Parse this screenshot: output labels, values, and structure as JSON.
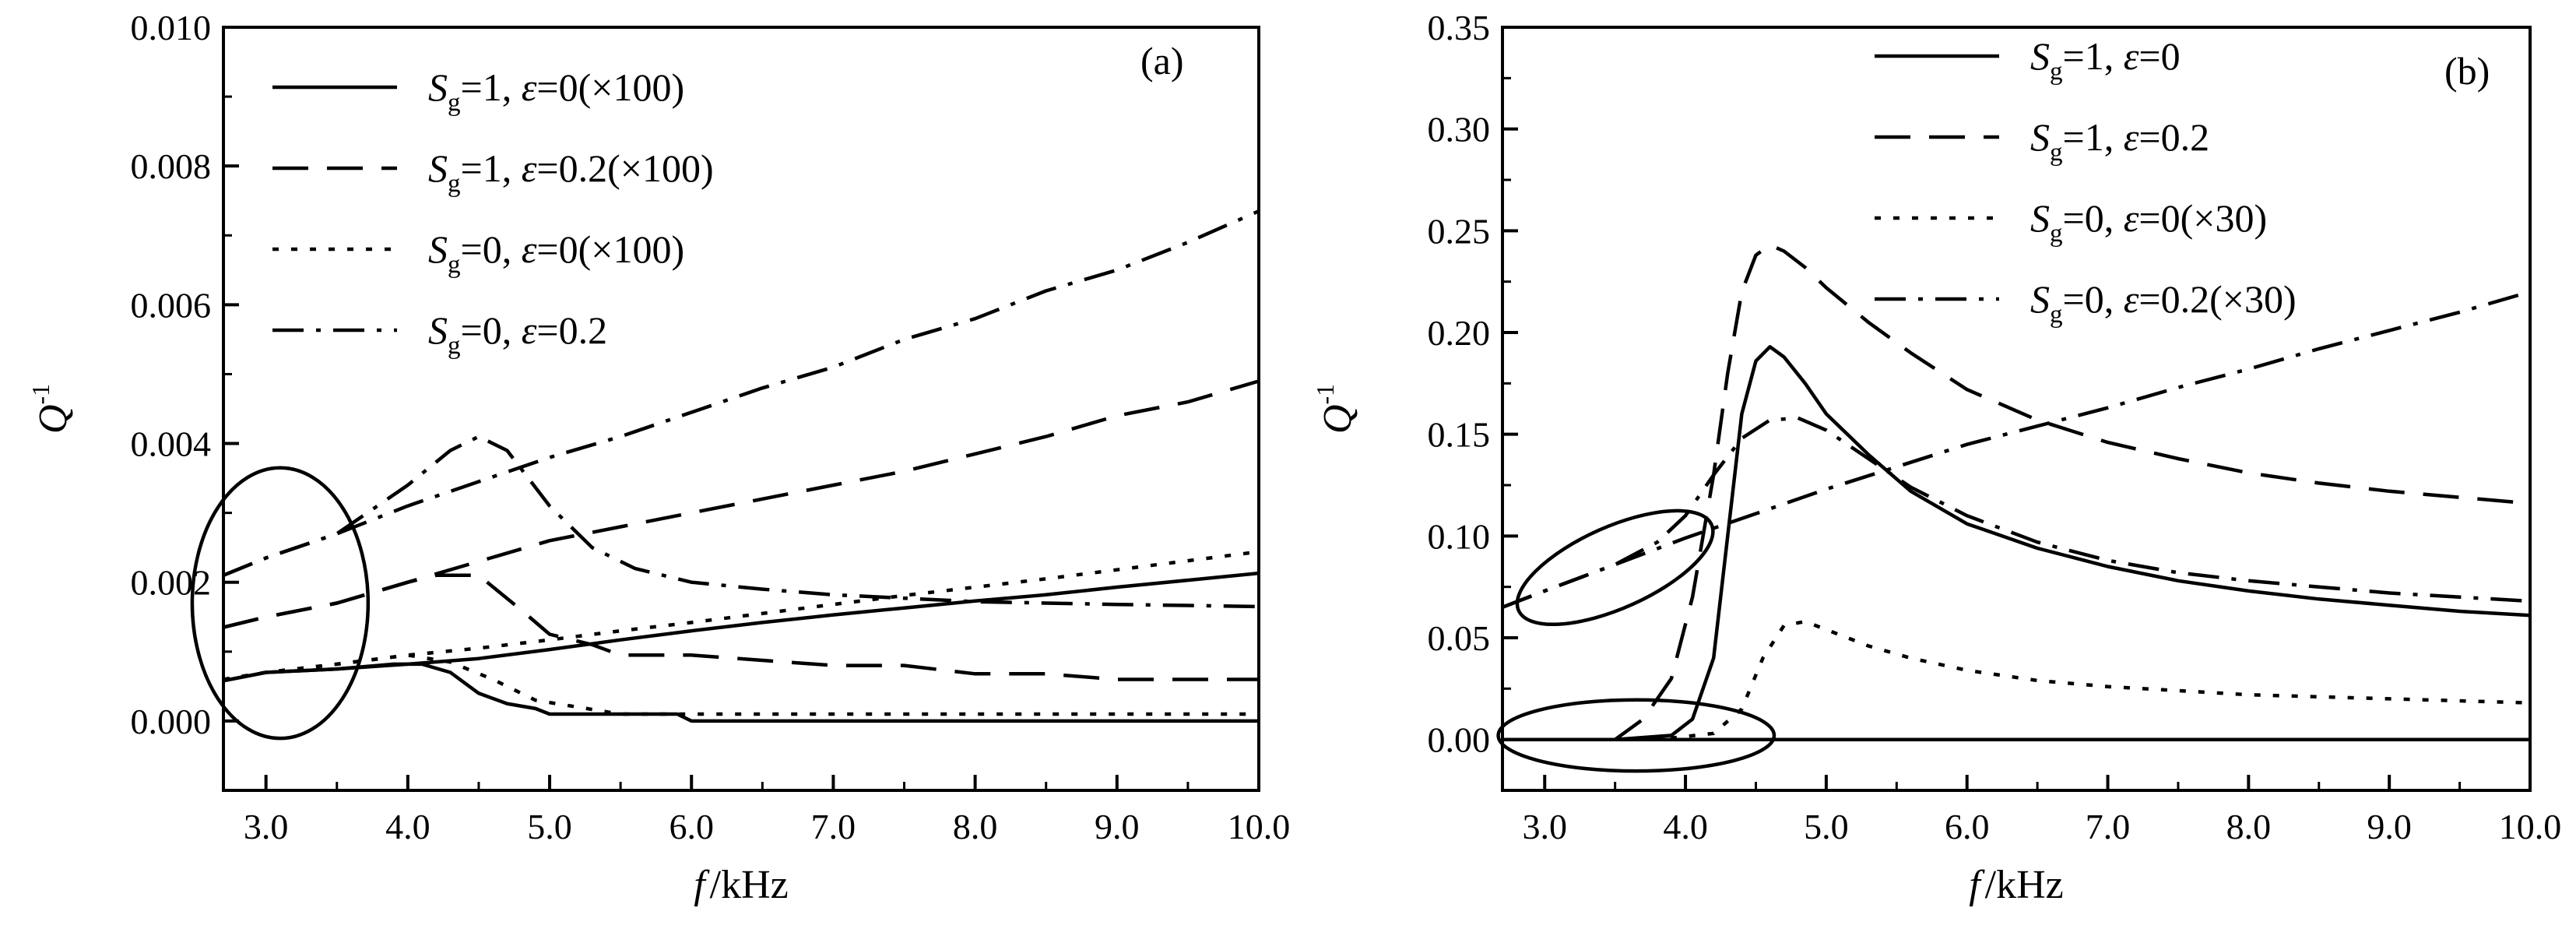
{
  "chart_data": [
    {
      "type": "line",
      "panel_label": "(a)",
      "xlabel_italic": "f",
      "xlabel_unit": "/kHz",
      "ylabel_main": "Q",
      "ylabel_sup": "-1",
      "xlim": [
        2.7,
        10.0
      ],
      "ylim": [
        -0.001,
        0.01
      ],
      "xticks": [
        3.0,
        4.0,
        5.0,
        6.0,
        7.0,
        8.0,
        9.0,
        10.0
      ],
      "xtick_labels": [
        "3.0",
        "4.0",
        "5.0",
        "6.0",
        "7.0",
        "8.0",
        "9.0",
        "10.0"
      ],
      "yticks": [
        0.0,
        0.002,
        0.004,
        0.006,
        0.008,
        0.01
      ],
      "ytick_labels": [
        "0.000",
        "0.002",
        "0.004",
        "0.006",
        "0.008",
        "0.010"
      ],
      "legend_position": "top-left",
      "series": [
        {
          "S": "S",
          "sub": "g",
          "svalue": "=1, ",
          "eps": "ε",
          "evalue": "=0(×100)",
          "style": "solid",
          "x": [
            2.7,
            3.0,
            3.5,
            4.0,
            4.5,
            5.0,
            5.5,
            6.0,
            6.5,
            7.0,
            7.5,
            8.0,
            8.5,
            9.0,
            9.5,
            10.0
          ],
          "y": [
            0.00058,
            0.0007,
            0.00075,
            0.00082,
            0.0009,
            0.00103,
            0.00117,
            0.0013,
            0.00142,
            0.00153,
            0.00163,
            0.00173,
            0.00182,
            0.00193,
            0.00203,
            0.00213
          ]
        },
        {
          "S": "S",
          "sub": "g",
          "svalue": "=1, ",
          "eps": "ε",
          "evalue": "=0.2(×100)",
          "style": "dash",
          "x": [
            2.7,
            3.0,
            3.5,
            4.0,
            4.5,
            5.0,
            5.5,
            6.0,
            6.5,
            7.0,
            7.5,
            8.0,
            8.5,
            9.0,
            9.5,
            10.0
          ],
          "y": [
            0.00135,
            0.0015,
            0.0017,
            0.002,
            0.0023,
            0.0026,
            0.0028,
            0.003,
            0.0032,
            0.0034,
            0.0036,
            0.00385,
            0.0041,
            0.0044,
            0.0046,
            0.0049
          ]
        },
        {
          "S": "S",
          "sub": "g",
          "svalue": "=0, ",
          "eps": "ε",
          "evalue": "=0(×100)",
          "style": "dot",
          "x": [
            2.7,
            3.0,
            3.5,
            4.0,
            4.5,
            5.0,
            5.5,
            6.0,
            6.5,
            7.0,
            7.5,
            8.0,
            8.5,
            9.0,
            9.5,
            10.0
          ],
          "y": [
            0.0006,
            0.0007,
            0.00082,
            0.00095,
            0.00105,
            0.00117,
            0.0013,
            0.00142,
            0.00155,
            0.00168,
            0.00181,
            0.00193,
            0.00205,
            0.00218,
            0.00231,
            0.00244
          ]
        },
        {
          "S": "S",
          "sub": "g",
          "svalue": "=0, ",
          "eps": "ε",
          "evalue": "=0.2",
          "style": "dashdot",
          "x": [
            2.7,
            3.0,
            3.5,
            4.0,
            4.5,
            5.0,
            5.5,
            6.0,
            6.5,
            7.0,
            7.5,
            8.0,
            8.5,
            9.0,
            9.5,
            10.0
          ],
          "y": [
            0.0021,
            0.00235,
            0.0027,
            0.0031,
            0.00345,
            0.0038,
            0.0041,
            0.00445,
            0.0048,
            0.0051,
            0.0055,
            0.0058,
            0.0062,
            0.0065,
            0.0069,
            0.00735
          ]
        }
      ],
      "extra_curves": [
        {
          "style": "solid",
          "x": [
            2.7,
            3.0,
            3.5,
            3.9,
            4.1,
            4.3,
            4.5,
            4.7,
            4.9,
            5.0,
            5.5,
            5.9,
            6.0,
            7.0,
            8.0,
            9.0,
            10.0
          ],
          "y": [
            0.00058,
            0.0007,
            0.00075,
            0.00082,
            0.00082,
            0.0007,
            0.0004,
            0.00025,
            0.00018,
            0.0001,
            0.0001,
            0.0001,
            0.0,
            0.0,
            0.0,
            0.0,
            0.0
          ]
        },
        {
          "style": "dash",
          "x": [
            2.7,
            3.0,
            3.5,
            4.0,
            4.2,
            4.5,
            4.8,
            5.0,
            5.3,
            5.5,
            6.0,
            7.0,
            7.5,
            8.0,
            8.5,
            9.0,
            10.0
          ],
          "y": [
            0.00135,
            0.0015,
            0.0017,
            0.002,
            0.0021,
            0.0021,
            0.0016,
            0.00125,
            0.0011,
            0.00095,
            0.00095,
            0.0008,
            0.0008,
            0.00068,
            0.00068,
            0.0006,
            0.0006
          ]
        },
        {
          "style": "dot",
          "x": [
            2.7,
            3.0,
            3.5,
            4.0,
            4.3,
            4.6,
            4.9,
            5.2,
            5.5,
            6.0,
            7.0,
            8.0,
            9.0,
            10.0
          ],
          "y": [
            0.0006,
            0.0007,
            0.00082,
            0.00095,
            0.00085,
            0.0006,
            0.0003,
            0.0002,
            0.0001,
            0.0001,
            0.0001,
            0.0001,
            0.0001,
            0.0001
          ]
        },
        {
          "style": "dashdot",
          "x": [
            2.7,
            3.0,
            3.5,
            4.0,
            4.3,
            4.5,
            4.7,
            5.0,
            5.3,
            5.6,
            6.0,
            6.5,
            7.0,
            7.5,
            8.0,
            9.0,
            10.0
          ],
          "y": [
            0.0021,
            0.00235,
            0.0027,
            0.0034,
            0.0039,
            0.0041,
            0.0039,
            0.0031,
            0.0025,
            0.0022,
            0.002,
            0.0019,
            0.00182,
            0.00177,
            0.00172,
            0.00168,
            0.00165
          ]
        }
      ],
      "ellipses": [
        {
          "cx": 3.1,
          "cy": 0.0017,
          "rx": 0.62,
          "ry": 0.00195,
          "angle_deg": 0
        }
      ]
    },
    {
      "type": "line",
      "panel_label": "(b)",
      "xlabel_italic": "f",
      "xlabel_unit": "/kHz",
      "ylabel_main": "Q",
      "ylabel_sup": "-1",
      "xlim": [
        2.7,
        10.0
      ],
      "ylim": [
        -0.025,
        0.35
      ],
      "xticks": [
        3.0,
        4.0,
        5.0,
        6.0,
        7.0,
        8.0,
        9.0,
        10.0
      ],
      "xtick_labels": [
        "3.0",
        "4.0",
        "5.0",
        "6.0",
        "7.0",
        "8.0",
        "9.0",
        "10.0"
      ],
      "yticks": [
        0.0,
        0.05,
        0.1,
        0.15,
        0.2,
        0.25,
        0.3,
        0.35
      ],
      "ytick_labels": [
        "0.00",
        "0.05",
        "0.10",
        "0.15",
        "0.20",
        "0.25",
        "0.30",
        "0.35"
      ],
      "legend_position": "top-center",
      "series": [
        {
          "S": "S",
          "sub": "g",
          "svalue": "=1, ",
          "eps": "ε",
          "evalue": "=0",
          "style": "solid",
          "x": [
            2.7,
            3.5,
            3.9,
            4.05,
            4.2,
            4.3,
            4.4,
            4.5,
            4.6,
            4.7,
            4.85,
            5.0,
            5.3,
            5.6,
            6.0,
            6.5,
            7.0,
            7.5,
            8.0,
            8.5,
            9.0,
            9.5,
            10.0
          ],
          "y": [
            0.0,
            0.0,
            0.002,
            0.01,
            0.04,
            0.1,
            0.16,
            0.186,
            0.193,
            0.188,
            0.175,
            0.16,
            0.14,
            0.122,
            0.106,
            0.094,
            0.085,
            0.078,
            0.073,
            0.069,
            0.066,
            0.063,
            0.061
          ]
        },
        {
          "S": "S",
          "sub": "g",
          "svalue": "=1, ",
          "eps": "ε",
          "evalue": "=0.2",
          "style": "dash",
          "x": [
            2.7,
            3.5,
            3.7,
            3.9,
            4.05,
            4.2,
            4.3,
            4.4,
            4.5,
            4.6,
            4.7,
            4.85,
            5.0,
            5.3,
            5.6,
            6.0,
            6.5,
            7.0,
            7.5,
            8.0,
            8.5,
            9.0,
            9.5,
            10.0
          ],
          "y": [
            0.0,
            0.0,
            0.01,
            0.03,
            0.07,
            0.13,
            0.18,
            0.22,
            0.238,
            0.243,
            0.24,
            0.232,
            0.222,
            0.205,
            0.19,
            0.172,
            0.157,
            0.146,
            0.138,
            0.131,
            0.126,
            0.122,
            0.119,
            0.116
          ]
        },
        {
          "S": "S",
          "sub": "g",
          "svalue": "=0, ",
          "eps": "ε",
          "evalue": "=0(×30)",
          "style": "dot",
          "x": [
            2.7,
            3.8,
            4.2,
            4.4,
            4.55,
            4.7,
            4.85,
            5.0,
            5.3,
            5.6,
            6.0,
            6.5,
            7.0,
            7.5,
            8.0,
            8.5,
            9.0,
            9.5,
            10.0
          ],
          "y": [
            0.0,
            0.0,
            0.003,
            0.015,
            0.04,
            0.056,
            0.058,
            0.054,
            0.046,
            0.04,
            0.034,
            0.029,
            0.026,
            0.024,
            0.022,
            0.021,
            0.02,
            0.019,
            0.018
          ]
        },
        {
          "S": "S",
          "sub": "g",
          "svalue": "=0, ",
          "eps": "ε",
          "evalue": "=0.2(×30)",
          "style": "dashdot",
          "x": [
            2.7,
            3.0,
            3.5,
            4.0,
            4.5,
            5.0,
            5.5,
            6.0,
            6.5,
            7.0,
            7.5,
            8.0,
            8.5,
            9.0,
            9.5,
            10.0
          ],
          "y": [
            0.065,
            0.073,
            0.086,
            0.099,
            0.111,
            0.123,
            0.134,
            0.145,
            0.154,
            0.163,
            0.173,
            0.182,
            0.192,
            0.201,
            0.21,
            0.22
          ]
        }
      ],
      "extra_curves": [
        {
          "style": "dashdot",
          "x": [
            2.7,
            3.0,
            3.5,
            3.8,
            4.0,
            4.2,
            4.4,
            4.6,
            4.8,
            5.0,
            5.3,
            5.6,
            6.0,
            6.5,
            7.0,
            7.5,
            8.0,
            8.5,
            9.0,
            9.5,
            10.0
          ],
          "y": [
            0.065,
            0.073,
            0.086,
            0.097,
            0.11,
            0.13,
            0.148,
            0.157,
            0.158,
            0.152,
            0.138,
            0.124,
            0.11,
            0.097,
            0.088,
            0.082,
            0.078,
            0.075,
            0.072,
            0.07,
            0.068
          ]
        },
        {
          "style": "solid",
          "x": [
            2.7,
            10.0
          ],
          "y": [
            0.0,
            0.0
          ]
        },
        {
          "style": "dash",
          "x": [
            2.7,
            10.0
          ],
          "y": [
            0.0,
            0.0
          ]
        },
        {
          "style": "dot",
          "x": [
            2.7,
            10.0
          ],
          "y": [
            0.0,
            0.0
          ]
        }
      ],
      "ellipses": [
        {
          "cx": 3.5,
          "cy": 0.0845,
          "rx": 0.75,
          "ry": 0.02,
          "angle_deg": -24
        },
        {
          "cx": 3.65,
          "cy": 0.002,
          "rx": 0.98,
          "ry": 0.0175,
          "angle_deg": 0
        }
      ]
    }
  ]
}
